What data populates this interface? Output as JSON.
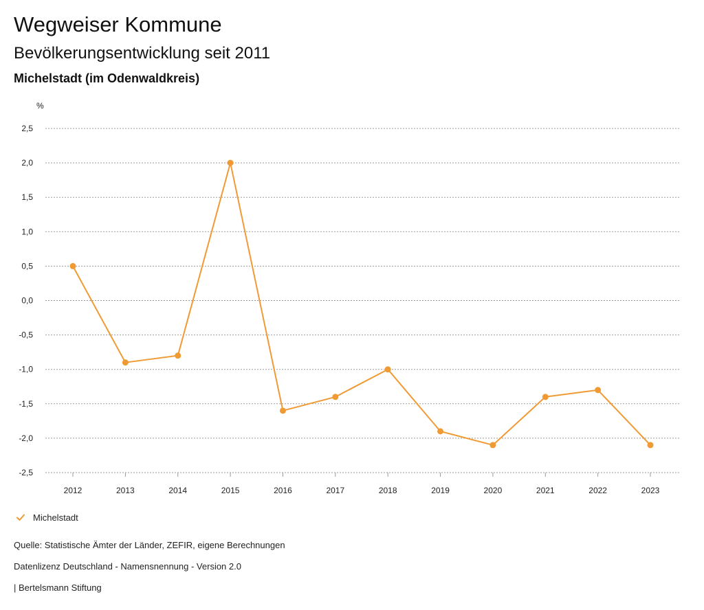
{
  "header": {
    "title": "Wegweiser Kommune",
    "subtitle": "Bevölkerungsentwicklung seit 2011",
    "region": "Michelstadt (im Odenwaldkreis)"
  },
  "chart_data": {
    "type": "line",
    "title": "Bevölkerungsentwicklung seit 2011",
    "ylabel": "%",
    "xlabel": "",
    "ylim": [
      -2.5,
      2.5
    ],
    "yticks": [
      2.5,
      2.0,
      1.5,
      1.0,
      0.5,
      0.0,
      -0.5,
      -1.0,
      -1.5,
      -2.0,
      -2.5
    ],
    "ytick_labels": [
      "2,5",
      "2,0",
      "1,5",
      "1,0",
      "0,5",
      "0,0",
      "-0,5",
      "-1,0",
      "-1,5",
      "-2,0",
      "-2,5"
    ],
    "categories": [
      "2012",
      "2013",
      "2014",
      "2015",
      "2016",
      "2017",
      "2018",
      "2019",
      "2020",
      "2021",
      "2022",
      "2023"
    ],
    "grid": true,
    "legend_position": "bottom-left",
    "series": [
      {
        "name": "Michelstadt",
        "color": "#F09A33",
        "values": [
          0.5,
          -0.9,
          -0.8,
          2.0,
          -1.6,
          -1.4,
          -1.0,
          -1.9,
          -2.1,
          -1.4,
          -1.3,
          -2.1
        ]
      }
    ]
  },
  "legend": {
    "label": "Michelstadt",
    "color": "#F09A33"
  },
  "footer": {
    "source": "Quelle: Statistische Ämter der Länder, ZEFIR, eigene Berechnungen",
    "license": "Datenlizenz Deutschland - Namensnennung - Version 2.0",
    "brand": "| Bertelsmann Stiftung"
  }
}
